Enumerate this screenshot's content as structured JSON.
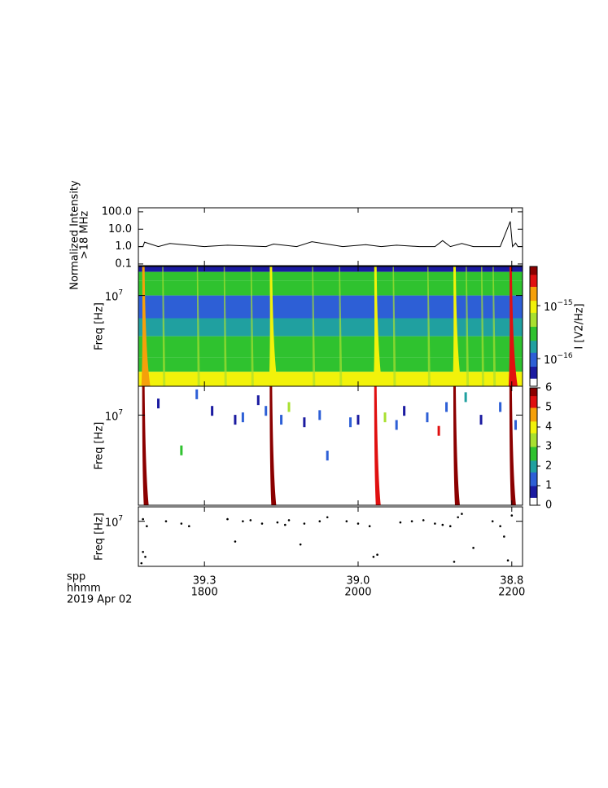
{
  "chart_data": [
    {
      "type": "line",
      "ylabel": [
        "Normalized Intensity",
        ">18 MHz"
      ],
      "yscale": "log",
      "ylim": [
        0.08,
        170
      ],
      "yticks": [
        {
          "value": 100,
          "label": "100.0"
        },
        {
          "value": 10,
          "label": "10.0"
        },
        {
          "value": 1,
          "label": "1.0"
        },
        {
          "value": 0.1,
          "label": "0.1"
        }
      ],
      "xlim": [
        17.14,
        22.14
      ],
      "color": "#000000",
      "x": [
        17.14,
        17.2,
        17.22,
        17.4,
        17.55,
        18.0,
        18.3,
        18.8,
        18.9,
        19.2,
        19.4,
        19.8,
        20.1,
        20.3,
        20.5,
        20.8,
        21.0,
        21.1,
        21.2,
        21.35,
        21.5,
        21.7,
        21.85,
        21.98,
        22.01,
        22.05,
        22.08,
        22.14
      ],
      "values": [
        1.0,
        1.0,
        1.8,
        1.0,
        1.5,
        1.0,
        1.2,
        1.0,
        1.4,
        1.0,
        1.9,
        1.0,
        1.3,
        1.0,
        1.2,
        1.0,
        1.0,
        2.2,
        1.0,
        1.5,
        1.0,
        1.0,
        1.0,
        28,
        1.0,
        1.6,
        1.0,
        1.0
      ]
    },
    {
      "type": "spectrogram",
      "ylabel": "Freq [Hz]",
      "yscale": "log",
      "ylim": [
        1300000,
        19200000
      ],
      "yticks": [
        {
          "value": 10000000,
          "base": "10",
          "exponent": "7"
        }
      ],
      "xlim": [
        17.14,
        22.14
      ],
      "band_edges": [
        19200000,
        17000000,
        14000000,
        10000000,
        6000000,
        4000000,
        2500000,
        1800000,
        1300000
      ],
      "levels": [
        5e-17,
        2.5e-16,
        2.5e-16,
        8e-17,
        1.5e-16,
        2.5e-16,
        4e-16,
        1e-15
      ],
      "bursts": [
        17.2,
        18.86,
        20.22,
        21.25,
        21.98
      ],
      "burst_peaks": [
        1.5e-15,
        1.2e-15,
        1e-15,
        1.2e-15,
        4e-15
      ],
      "faint_streaks": [
        17.45,
        17.9,
        18.25,
        18.6,
        19.4,
        19.75,
        20.45,
        20.9,
        21.4,
        21.6,
        21.75
      ],
      "colorbar": {
        "label": "I [V2/Hz]",
        "scale": "log",
        "lim": [
          3e-17,
          5.5e-15
        ],
        "ticks": [
          {
            "value": 1e-15,
            "base": "10",
            "exponent": "−15"
          },
          {
            "value": 1e-16,
            "base": "10",
            "exponent": "−16"
          }
        ]
      },
      "colormap": [
        "#ffffff",
        "#1a1aa0",
        "#2d5fd6",
        "#20a0a0",
        "#2fc22f",
        "#a8e030",
        "#f2f20a",
        "#f5a00a",
        "#e01010",
        "#8b0000"
      ]
    },
    {
      "type": "blocks",
      "ylabel": "Freq [Hz]",
      "yscale": "log",
      "ylim": [
        1300000,
        19200000
      ],
      "yticks": [
        {
          "value": 10000000,
          "base": "10",
          "exponent": "7"
        }
      ],
      "xlim": [
        17.14,
        22.14
      ],
      "x": [
        17.9,
        18.1,
        18.4,
        18.5,
        18.7,
        18.8,
        19.0,
        19.1,
        19.3,
        19.5,
        19.9,
        20.0,
        20.35,
        20.5,
        20.6,
        20.9,
        21.05,
        21.15,
        21.4,
        21.6,
        21.85,
        22.05,
        17.4,
        17.7,
        19.6
      ],
      "freq": [
        16000000,
        11000000,
        9000000,
        9500000,
        14000000,
        11000000,
        9000000,
        12000000,
        8500000,
        10000000,
        8500000,
        9000000,
        9500000,
        8000000,
        11000000,
        9500000,
        7000000,
        12000000,
        15000000,
        9000000,
        12000000,
        8000000,
        13000000,
        4500000,
        4000000
      ],
      "values": [
        1,
        0.5,
        0.8,
        1,
        0.8,
        1.2,
        1.5,
        3.5,
        0.8,
        1,
        1.2,
        0.7,
        3,
        1,
        0.8,
        1.5,
        5.5,
        1,
        2,
        0.7,
        1,
        1.2,
        0.6,
        2.5,
        1.5
      ],
      "burst_x": [
        17.2,
        18.86,
        20.22,
        21.25,
        21.98
      ],
      "burst_values": [
        6,
        6,
        5,
        6,
        6
      ],
      "colorbar": {
        "lim": [
          0,
          6
        ],
        "ticks": [
          0,
          1,
          2,
          3,
          4,
          5,
          6
        ]
      }
    },
    {
      "type": "scatter",
      "ylabel": "Freq [Hz]",
      "yscale": "log",
      "ylim": [
        1300000,
        19200000
      ],
      "yticks": [
        {
          "value": 10000000,
          "base": "10",
          "exponent": "7"
        }
      ],
      "xlim": [
        17.14,
        22.14
      ],
      "color": "#000000",
      "x": [
        17.2,
        17.25,
        17.2,
        17.23,
        17.18,
        17.5,
        17.7,
        17.8,
        18.3,
        18.5,
        18.6,
        18.75,
        18.95,
        19.05,
        19.1,
        19.3,
        19.5,
        19.6,
        19.85,
        20.0,
        20.15,
        20.2,
        20.25,
        20.55,
        20.7,
        20.85,
        21.0,
        21.1,
        21.2,
        21.3,
        21.25,
        21.35,
        21.5,
        21.75,
        21.85,
        21.9,
        21.95,
        22.0,
        19.25,
        18.4
      ],
      "y": [
        11000000,
        8000000,
        2500000,
        2000000,
        1500000,
        10000000,
        9000000,
        8000000,
        11000000,
        10000000,
        10500000,
        9000000,
        9500000,
        8500000,
        10500000,
        9000000,
        10000000,
        12000000,
        10000000,
        9000000,
        8000000,
        2000000,
        2200000,
        9500000,
        10000000,
        10500000,
        9000000,
        8500000,
        8000000,
        12000000,
        1600000,
        14000000,
        3000000,
        10000000,
        8000000,
        5000000,
        1700000,
        13000000,
        3500000,
        4000000
      ],
      "xticks": [
        {
          "value": 18,
          "label": "1800"
        },
        {
          "value": 20,
          "label": "2000"
        },
        {
          "value": 22,
          "label": "2200"
        }
      ],
      "distance_labels": [
        "39.3",
        "39.0",
        "38.8"
      ],
      "row_labels": [
        "spp",
        "hhmm",
        "2019 Apr 02"
      ]
    }
  ]
}
